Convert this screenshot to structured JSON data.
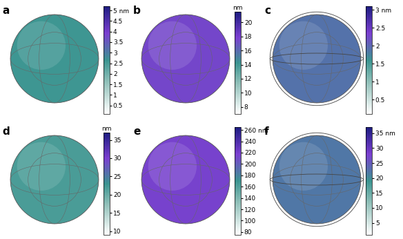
{
  "chart_data": {
    "type": "sphere_maps",
    "panels": [
      {
        "label": "a",
        "value": 2.6,
        "colorbar": {
          "range": [
            0.1,
            5.2
          ],
          "ticks": [
            0.5,
            1,
            1.5,
            2,
            2.5,
            3,
            3.5,
            4,
            4.5,
            {
              "value": 5,
              "label": "5 nm"
            }
          ]
        }
      },
      {
        "label": "b",
        "value": 17.5,
        "colorbar": {
          "range": [
            7,
            21.5
          ],
          "title": "nm",
          "ticks": [
            8,
            10,
            12,
            14,
            16,
            18,
            20
          ]
        }
      },
      {
        "label": "c",
        "value": 1.9,
        "colorbar": {
          "range": [
            0.1,
            3.1
          ],
          "ticks": [
            0.5,
            1,
            1.5,
            2,
            2.5,
            {
              "value": 3,
              "label": "3 nm"
            }
          ]
        }
      },
      {
        "label": "d",
        "value": 22,
        "colorbar": {
          "range": [
            9,
            37
          ],
          "title": "nm",
          "ticks": [
            10,
            15,
            20,
            25,
            30,
            35
          ]
        }
      },
      {
        "label": "e",
        "value": 215,
        "colorbar": {
          "range": [
            75,
            265
          ],
          "ticks": [
            80,
            100,
            120,
            140,
            160,
            180,
            200,
            220,
            240,
            {
              "value": 260,
              "label": "260 nm"
            }
          ]
        }
      },
      {
        "label": "f",
        "value": 22,
        "colorbar": {
          "range": [
            1,
            37
          ],
          "ticks": [
            5,
            10,
            15,
            20,
            25,
            30,
            {
              "value": 35,
              "label": "35 nm"
            }
          ]
        }
      }
    ]
  }
}
